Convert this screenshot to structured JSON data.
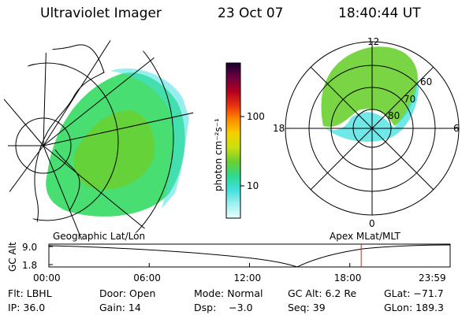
{
  "header": {
    "title": "Ultraviolet Imager",
    "date": "23 Oct 07",
    "time": "18:40:44 UT"
  },
  "colorbar": {
    "label": "photon cm⁻²s⁻¹",
    "ticks": [
      "100",
      "10"
    ],
    "stops": [
      "#1a0030",
      "#6a0040",
      "#b00020",
      "#e83010",
      "#ff8a00",
      "#f5d000",
      "#c8e010",
      "#6ad030",
      "#30d890",
      "#40e0e0",
      "#a0f0f0",
      "#e8ffff"
    ]
  },
  "polar_plot": {
    "mlt_labels": [
      "12",
      "18",
      "6",
      "0"
    ],
    "mlat_labels": [
      "60",
      "70",
      "80"
    ]
  },
  "plot_labels": {
    "left": "Geographic Lat/Lon",
    "right": "Apex MLat/MLT"
  },
  "orbit": {
    "axis_label": "GC Alt",
    "y_ticks": [
      "9.0",
      "1.8"
    ],
    "x_ticks": [
      "00:00",
      "06:00",
      "12:00",
      "18:00",
      "23:59"
    ],
    "marker_time_hours": 18.68,
    "marker_color": "#c03020"
  },
  "info": {
    "row1": [
      "Flt: LBHL",
      "Door: Open",
      "Mode: Normal",
      "GC Alt: 6.2 Re",
      "GLat: −71.7"
    ],
    "row2": [
      "IP: 36.0",
      "Gain: 14",
      "Dsp:    −3.0",
      "Seq: 39",
      "GLon: 189.3"
    ]
  }
}
